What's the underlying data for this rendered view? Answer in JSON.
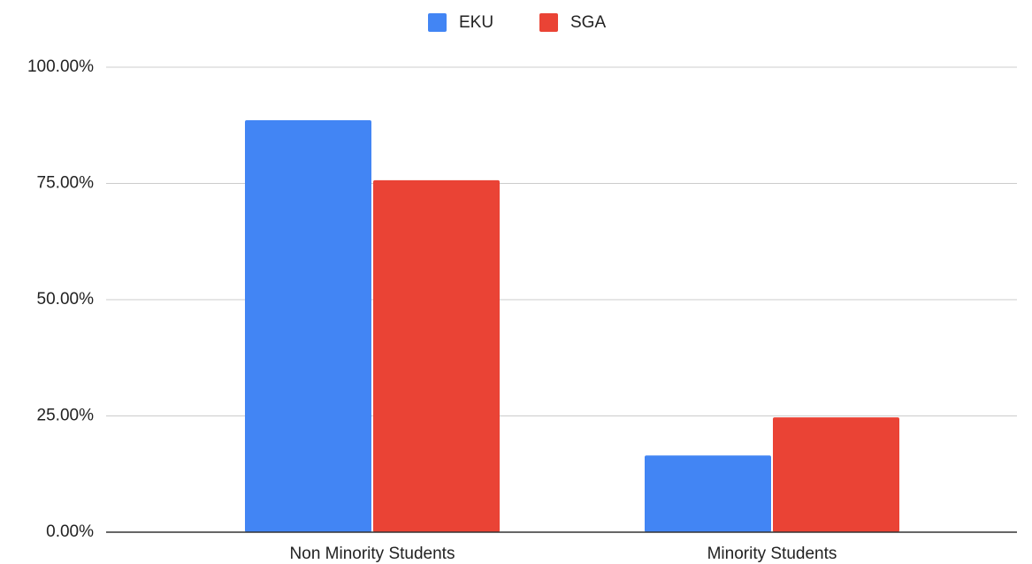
{
  "chart_data": {
    "type": "bar",
    "categories": [
      "Non Minority Students",
      "Minority Students"
    ],
    "series": [
      {
        "name": "EKU",
        "color": "#4285f4",
        "values": [
          88.6,
          16.5
        ]
      },
      {
        "name": "SGA",
        "color": "#ea4335",
        "values": [
          75.7,
          24.7
        ]
      }
    ],
    "ylim": [
      0,
      100
    ],
    "yticks": [
      {
        "value": 0,
        "label": "0.00%"
      },
      {
        "value": 25,
        "label": "25.00%"
      },
      {
        "value": 50,
        "label": "50.00%"
      },
      {
        "value": 75,
        "label": "75.00%"
      },
      {
        "value": 100,
        "label": "100.00%"
      }
    ],
    "grid": true,
    "legend": "top"
  }
}
